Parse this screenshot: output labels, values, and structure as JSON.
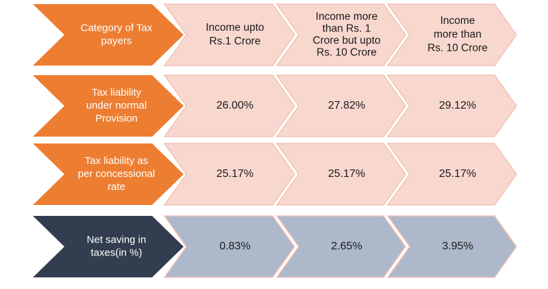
{
  "colors": {
    "orange": "#ED7D31",
    "dark": "#323E4F",
    "pink": "#F8D7CF",
    "pink_stroke": "#F3C2B6",
    "blue_grey": "#ADB9CA",
    "blue_grey_stroke": "#F3C2B6"
  },
  "rows": [
    {
      "label": [
        "Category of Tax",
        "payers"
      ],
      "style": "orange",
      "cells": [
        [
          "Income upto",
          "Rs.1 Crore"
        ],
        [
          "Income more",
          "than Rs. 1",
          "Crore but upto",
          "Rs. 10 Crore"
        ],
        [
          "Income",
          "more than",
          "Rs. 10 Crore"
        ]
      ]
    },
    {
      "label": [
        "Tax liability",
        "under normal",
        "Provision"
      ],
      "style": "orange",
      "cells": [
        [
          "26.00%"
        ],
        [
          "27.82%"
        ],
        [
          "29.12%"
        ]
      ]
    },
    {
      "label": [
        "Tax liability as",
        "per concessional",
        "rate"
      ],
      "style": "orange",
      "cells": [
        [
          "25.17%"
        ],
        [
          "25.17%"
        ],
        [
          "25.17%"
        ]
      ]
    },
    {
      "label": [
        "Net saving in",
        "taxes(in %)"
      ],
      "style": "dark",
      "cells": [
        [
          "0.83%"
        ],
        [
          "2.65%"
        ],
        [
          "3.95%"
        ]
      ]
    }
  ]
}
